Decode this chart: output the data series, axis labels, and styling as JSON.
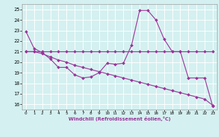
{
  "xlabel": "Windchill (Refroidissement éolien,°C)",
  "x": [
    0,
    1,
    2,
    3,
    4,
    5,
    6,
    7,
    8,
    9,
    10,
    11,
    12,
    13,
    14,
    15,
    16,
    17,
    18,
    19,
    20,
    21,
    22,
    23
  ],
  "line1": [
    22.9,
    21.3,
    20.9,
    20.3,
    19.5,
    19.5,
    18.8,
    18.5,
    18.6,
    19.0,
    19.9,
    19.8,
    19.9,
    21.6,
    24.9,
    24.9,
    24.0,
    22.2,
    21.0,
    21.0,
    18.5,
    18.5,
    18.5,
    15.8
  ],
  "line2": [
    21.0,
    21.0,
    20.8,
    20.5,
    20.2,
    20.0,
    19.7,
    19.5,
    19.3,
    19.1,
    18.9,
    18.7,
    18.5,
    18.3,
    18.1,
    17.9,
    17.7,
    17.5,
    17.3,
    17.1,
    16.9,
    16.7,
    16.5,
    15.9
  ],
  "line3": [
    21.0,
    21.0,
    21.0,
    21.0,
    21.0,
    21.0,
    21.0,
    21.0,
    21.0,
    21.0,
    21.0,
    21.0,
    21.0,
    21.0,
    21.0,
    21.0,
    21.0,
    21.0,
    21.0,
    21.0,
    21.0,
    21.0,
    21.0,
    21.0
  ],
  "color": "#993399",
  "bg_color": "#d4f0f0",
  "grid_color": "#aadddd",
  "ylim": [
    15.5,
    25.5
  ],
  "xlim": [
    -0.5,
    23.5
  ],
  "yticks": [
    16,
    17,
    18,
    19,
    20,
    21,
    22,
    23,
    24,
    25
  ],
  "xticks": [
    0,
    1,
    2,
    3,
    4,
    5,
    6,
    7,
    8,
    9,
    10,
    11,
    12,
    13,
    14,
    15,
    16,
    17,
    18,
    19,
    20,
    21,
    22,
    23
  ]
}
